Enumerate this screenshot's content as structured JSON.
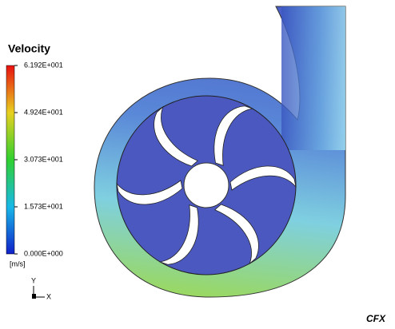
{
  "legend": {
    "title": "Velocity",
    "ticks": [
      "6.192E+001",
      "4.924E+001",
      "3.073E+001",
      "1.573E+001",
      "0.000E+000"
    ],
    "unit": "[m/s]"
  },
  "axes": {
    "y": "Y",
    "x": "X"
  },
  "logo": "CFX"
}
